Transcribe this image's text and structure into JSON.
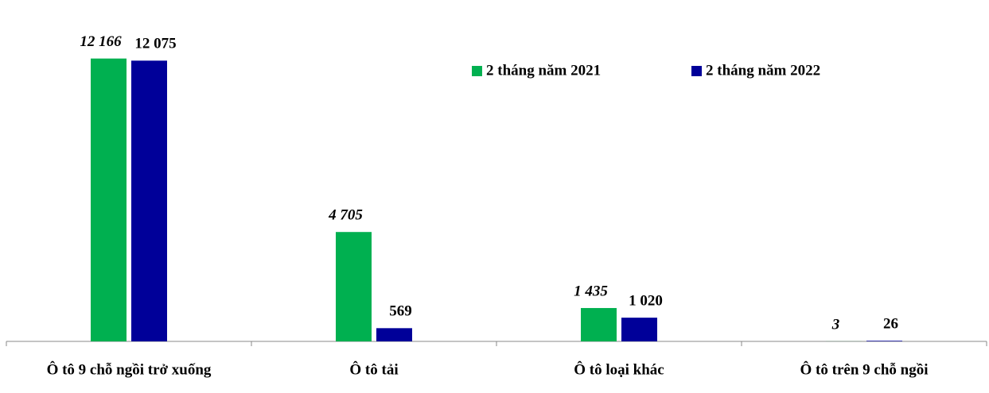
{
  "chart_data": {
    "type": "bar",
    "categories": [
      "Ô tô 9 chỗ ngồi trở xuống",
      "Ô tô tải",
      "Ô tô loại khác",
      "Ô tô trên 9 chỗ ngồi"
    ],
    "series": [
      {
        "name": "2 tháng năm 2021",
        "color": "#00b050",
        "values": [
          12166,
          4705,
          1435,
          3
        ],
        "value_labels": [
          "12 166",
          "4 705",
          "1 435",
          "3"
        ]
      },
      {
        "name": "2 tháng năm 2022",
        "color": "#000099",
        "values": [
          12075,
          569,
          1020,
          26
        ],
        "value_labels": [
          "12 075",
          "569",
          "1 020",
          "26"
        ]
      }
    ],
    "ylim": [
      0,
      14000
    ],
    "legend": "top-right"
  }
}
